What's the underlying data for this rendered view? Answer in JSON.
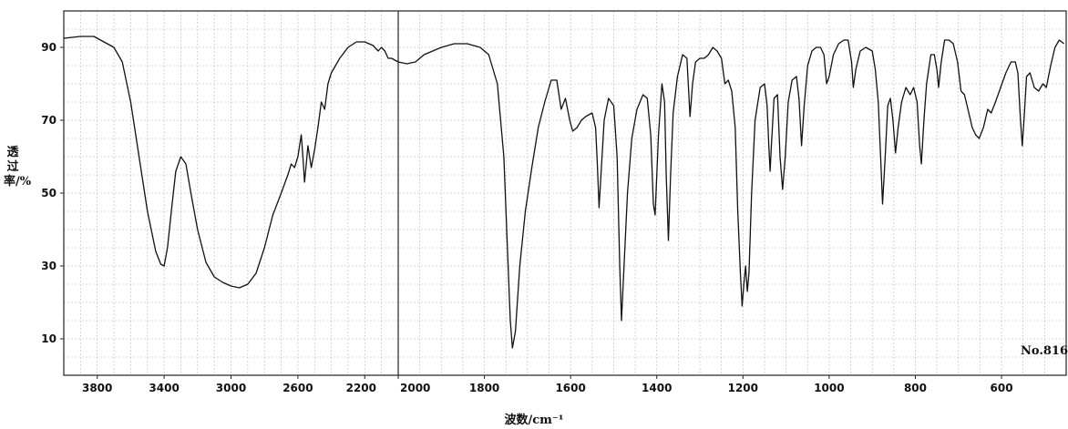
{
  "chart_data": {
    "type": "line",
    "xlabel": "波数/cm⁻¹",
    "ylabel": "透过率/%",
    "annotation": "No.816",
    "xlim": [
      4000,
      450
    ],
    "x_axis_split": 2000,
    "ylim": [
      0,
      100
    ],
    "grid": true,
    "x_ticks": [
      {
        "value": 3800,
        "label": "3800"
      },
      {
        "value": 3400,
        "label": "3400"
      },
      {
        "value": 3000,
        "label": "3000"
      },
      {
        "value": 2600,
        "label": "2600"
      },
      {
        "value": 2200,
        "label": "2200"
      },
      {
        "value": 2000,
        "label": "2000"
      },
      {
        "value": 1800,
        "label": "1800"
      },
      {
        "value": 1600,
        "label": "1600"
      },
      {
        "value": 1400,
        "label": "1400"
      },
      {
        "value": 1200,
        "label": "1200"
      },
      {
        "value": 1000,
        "label": "1000"
      },
      {
        "value": 800,
        "label": "800"
      },
      {
        "value": 600,
        "label": "600"
      }
    ],
    "y_ticks": [
      {
        "value": 90,
        "label": "90"
      },
      {
        "value": 70,
        "label": "70"
      },
      {
        "value": 50,
        "label": "50"
      },
      {
        "value": 30,
        "label": "30"
      },
      {
        "value": 10,
        "label": "10"
      }
    ],
    "series": [
      {
        "points": [
          [
            4000,
            92.5
          ],
          [
            3900,
            93
          ],
          [
            3820,
            93
          ],
          [
            3780,
            92
          ],
          [
            3700,
            90
          ],
          [
            3650,
            86
          ],
          [
            3600,
            75
          ],
          [
            3550,
            60
          ],
          [
            3500,
            45
          ],
          [
            3450,
            34
          ],
          [
            3420,
            30.5
          ],
          [
            3400,
            30
          ],
          [
            3380,
            35
          ],
          [
            3350,
            48
          ],
          [
            3330,
            56
          ],
          [
            3300,
            60
          ],
          [
            3270,
            58
          ],
          [
            3240,
            50
          ],
          [
            3200,
            40
          ],
          [
            3150,
            31
          ],
          [
            3100,
            27
          ],
          [
            3050,
            25.5
          ],
          [
            3000,
            24.5
          ],
          [
            2950,
            24
          ],
          [
            2900,
            25
          ],
          [
            2850,
            28
          ],
          [
            2800,
            35
          ],
          [
            2750,
            44
          ],
          [
            2700,
            50
          ],
          [
            2660,
            55
          ],
          [
            2640,
            58
          ],
          [
            2620,
            57
          ],
          [
            2600,
            60
          ],
          [
            2580,
            66
          ],
          [
            2570,
            60
          ],
          [
            2560,
            53
          ],
          [
            2550,
            58
          ],
          [
            2540,
            63
          ],
          [
            2520,
            57
          ],
          [
            2500,
            62
          ],
          [
            2480,
            68
          ],
          [
            2460,
            75
          ],
          [
            2440,
            73
          ],
          [
            2420,
            80
          ],
          [
            2400,
            83
          ],
          [
            2350,
            87
          ],
          [
            2300,
            90
          ],
          [
            2250,
            91.5
          ],
          [
            2200,
            91.5
          ],
          [
            2150,
            90.5
          ],
          [
            2120,
            89
          ],
          [
            2100,
            90
          ],
          [
            2080,
            89
          ],
          [
            2060,
            87
          ],
          [
            2040,
            87
          ],
          [
            2020,
            86.5
          ],
          [
            2000,
            86
          ],
          [
            1980,
            85.5
          ],
          [
            1960,
            86
          ],
          [
            1940,
            88
          ],
          [
            1900,
            90
          ],
          [
            1870,
            91
          ],
          [
            1840,
            91
          ],
          [
            1810,
            90
          ],
          [
            1790,
            88
          ],
          [
            1770,
            80
          ],
          [
            1755,
            60
          ],
          [
            1745,
            30
          ],
          [
            1740,
            15
          ],
          [
            1735,
            7.5
          ],
          [
            1728,
            12
          ],
          [
            1718,
            30
          ],
          [
            1705,
            45
          ],
          [
            1690,
            57
          ],
          [
            1675,
            68
          ],
          [
            1660,
            75
          ],
          [
            1645,
            81
          ],
          [
            1632,
            81
          ],
          [
            1622,
            73
          ],
          [
            1612,
            76
          ],
          [
            1602,
            70
          ],
          [
            1595,
            67
          ],
          [
            1585,
            68
          ],
          [
            1575,
            70
          ],
          [
            1565,
            71
          ],
          [
            1550,
            72
          ],
          [
            1542,
            68
          ],
          [
            1538,
            58
          ],
          [
            1534,
            46
          ],
          [
            1528,
            58
          ],
          [
            1522,
            70
          ],
          [
            1512,
            76
          ],
          [
            1500,
            74
          ],
          [
            1492,
            60
          ],
          [
            1486,
            30
          ],
          [
            1482,
            15
          ],
          [
            1476,
            30
          ],
          [
            1468,
            50
          ],
          [
            1458,
            65
          ],
          [
            1446,
            73
          ],
          [
            1432,
            77
          ],
          [
            1422,
            76
          ],
          [
            1414,
            66
          ],
          [
            1408,
            47
          ],
          [
            1404,
            44
          ],
          [
            1396,
            66
          ],
          [
            1388,
            80
          ],
          [
            1382,
            75
          ],
          [
            1378,
            55
          ],
          [
            1373,
            37
          ],
          [
            1368,
            55
          ],
          [
            1362,
            72
          ],
          [
            1352,
            82
          ],
          [
            1340,
            88
          ],
          [
            1330,
            87
          ],
          [
            1323,
            71
          ],
          [
            1317,
            80
          ],
          [
            1310,
            86
          ],
          [
            1300,
            87
          ],
          [
            1290,
            87
          ],
          [
            1280,
            88
          ],
          [
            1270,
            90
          ],
          [
            1260,
            89
          ],
          [
            1250,
            87
          ],
          [
            1242,
            80
          ],
          [
            1234,
            81
          ],
          [
            1226,
            78
          ],
          [
            1218,
            68
          ],
          [
            1212,
            45
          ],
          [
            1206,
            28
          ],
          [
            1202,
            19
          ],
          [
            1198,
            25
          ],
          [
            1194,
            30
          ],
          [
            1190,
            23
          ],
          [
            1186,
            28
          ],
          [
            1180,
            50
          ],
          [
            1172,
            70
          ],
          [
            1160,
            79
          ],
          [
            1150,
            80
          ],
          [
            1144,
            74
          ],
          [
            1140,
            63
          ],
          [
            1137,
            56
          ],
          [
            1134,
            63
          ],
          [
            1128,
            76
          ],
          [
            1120,
            77
          ],
          [
            1114,
            60
          ],
          [
            1108,
            51
          ],
          [
            1102,
            60
          ],
          [
            1095,
            75
          ],
          [
            1086,
            81
          ],
          [
            1076,
            82
          ],
          [
            1070,
            76
          ],
          [
            1064,
            63
          ],
          [
            1058,
            74
          ],
          [
            1050,
            85
          ],
          [
            1040,
            89
          ],
          [
            1030,
            90
          ],
          [
            1020,
            90
          ],
          [
            1012,
            88
          ],
          [
            1006,
            80
          ],
          [
            1000,
            82
          ],
          [
            990,
            88
          ],
          [
            978,
            91
          ],
          [
            966,
            92
          ],
          [
            956,
            92
          ],
          [
            948,
            86
          ],
          [
            944,
            79
          ],
          [
            938,
            84
          ],
          [
            928,
            89
          ],
          [
            915,
            90
          ],
          [
            900,
            89
          ],
          [
            893,
            84
          ],
          [
            886,
            75
          ],
          [
            880,
            58
          ],
          [
            876,
            47
          ],
          [
            870,
            60
          ],
          [
            864,
            74
          ],
          [
            858,
            76
          ],
          [
            852,
            70
          ],
          [
            846,
            61
          ],
          [
            840,
            68
          ],
          [
            832,
            75
          ],
          [
            822,
            79
          ],
          [
            812,
            77
          ],
          [
            804,
            79
          ],
          [
            796,
            75
          ],
          [
            790,
            63
          ],
          [
            786,
            58
          ],
          [
            780,
            70
          ],
          [
            774,
            80
          ],
          [
            764,
            88
          ],
          [
            756,
            88
          ],
          [
            750,
            84
          ],
          [
            746,
            79
          ],
          [
            740,
            86
          ],
          [
            732,
            92
          ],
          [
            722,
            92
          ],
          [
            712,
            91
          ],
          [
            702,
            86
          ],
          [
            694,
            78
          ],
          [
            686,
            77
          ],
          [
            678,
            73
          ],
          [
            668,
            68
          ],
          [
            660,
            66
          ],
          [
            652,
            65
          ],
          [
            642,
            68
          ],
          [
            632,
            73
          ],
          [
            624,
            72
          ],
          [
            614,
            75
          ],
          [
            602,
            79
          ],
          [
            590,
            83
          ],
          [
            578,
            86
          ],
          [
            568,
            86
          ],
          [
            562,
            83
          ],
          [
            556,
            70
          ],
          [
            552,
            63
          ],
          [
            548,
            70
          ],
          [
            542,
            82
          ],
          [
            534,
            83
          ],
          [
            524,
            79
          ],
          [
            514,
            78
          ],
          [
            504,
            80
          ],
          [
            496,
            79
          ],
          [
            486,
            85
          ],
          [
            476,
            90
          ],
          [
            466,
            92
          ],
          [
            455,
            91
          ]
        ]
      }
    ]
  }
}
